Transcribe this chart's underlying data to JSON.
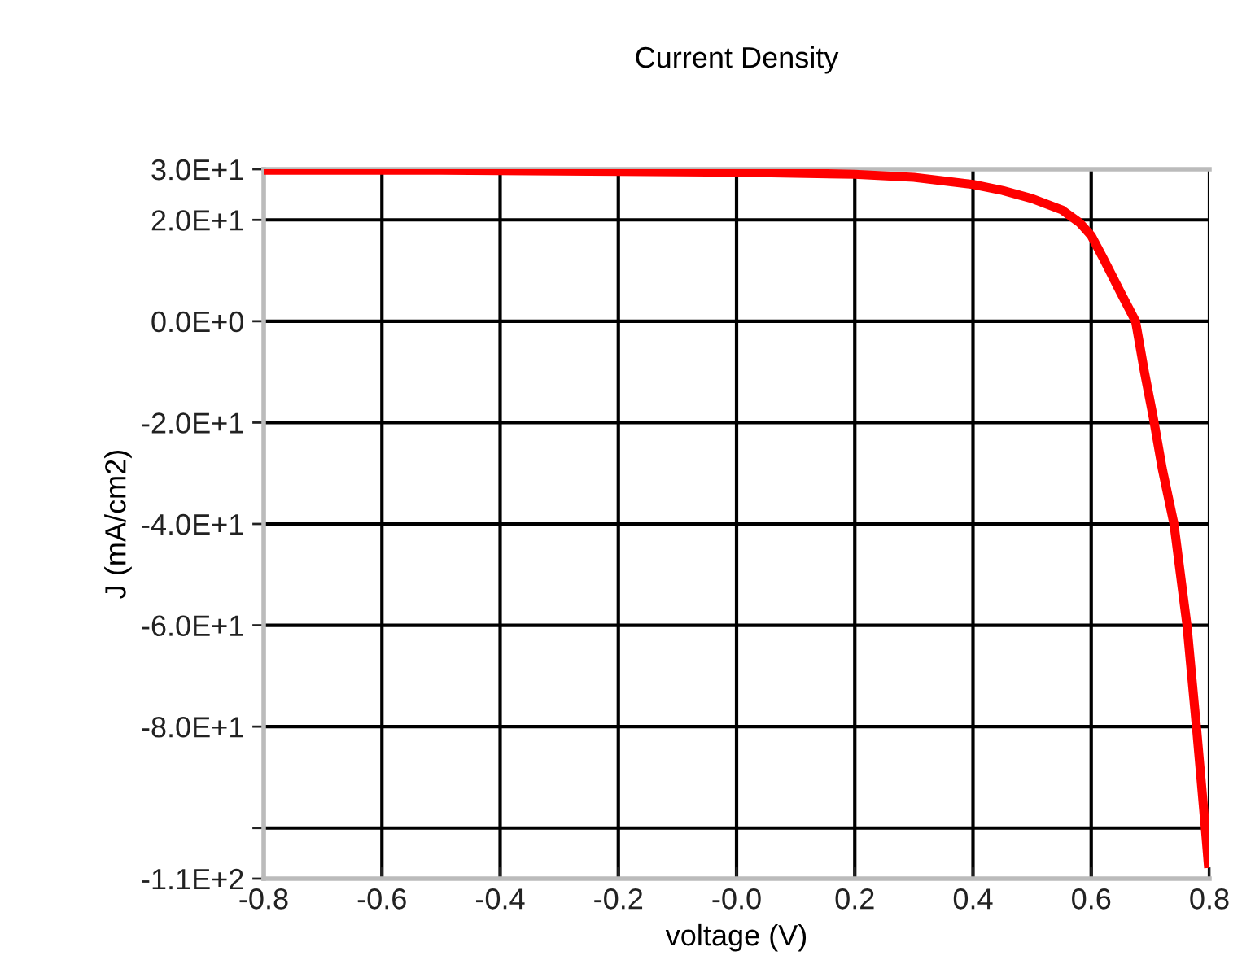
{
  "chart_data": {
    "type": "line",
    "title": "Current Density",
    "xlabel": "voltage (V)",
    "ylabel": "J (mA/cm2)",
    "xlim": [
      -0.8,
      0.8
    ],
    "xticks": [
      -0.8,
      -0.6,
      -0.4,
      -0.2,
      {
        "value": 0,
        "label": "-0.0"
      },
      0.2,
      0.4,
      0.6,
      0.8
    ],
    "ylim": [
      -110,
      30
    ],
    "yticks": [
      {
        "value": 30,
        "label": "3.0E+1"
      },
      {
        "value": 20,
        "label": "2.0E+1"
      },
      {
        "value": 0,
        "label": "0.0E+0"
      },
      {
        "value": -20,
        "label": "-2.0E+1"
      },
      {
        "value": -40,
        "label": "-4.0E+1"
      },
      {
        "value": -60,
        "label": "-6.0E+1"
      },
      {
        "value": -80,
        "label": "-8.0E+1"
      },
      {
        "value": -100,
        "label": null
      },
      {
        "value": -110,
        "label": "-1.1E+2"
      }
    ],
    "grid": true,
    "marker": "none",
    "line_style": "solid",
    "series": [
      {
        "color": "#ff0000",
        "x": [
          -0.8,
          -0.5,
          -0.25,
          0.0,
          0.2,
          0.3,
          0.4,
          0.45,
          0.5,
          0.55,
          0.58,
          0.6,
          0.62,
          0.65,
          0.675,
          0.69,
          0.705,
          0.72,
          0.74,
          0.762,
          0.778,
          0.793,
          0.798
        ],
        "values": [
          29.8,
          29.8,
          29.6,
          29.4,
          29.0,
          28.4,
          27.0,
          25.8,
          24.2,
          22.0,
          19.5,
          16.9,
          12.5,
          5.6,
          0,
          -10,
          -19,
          -29,
          -40,
          -60,
          -80,
          -100,
          -107
        ]
      }
    ]
  }
}
